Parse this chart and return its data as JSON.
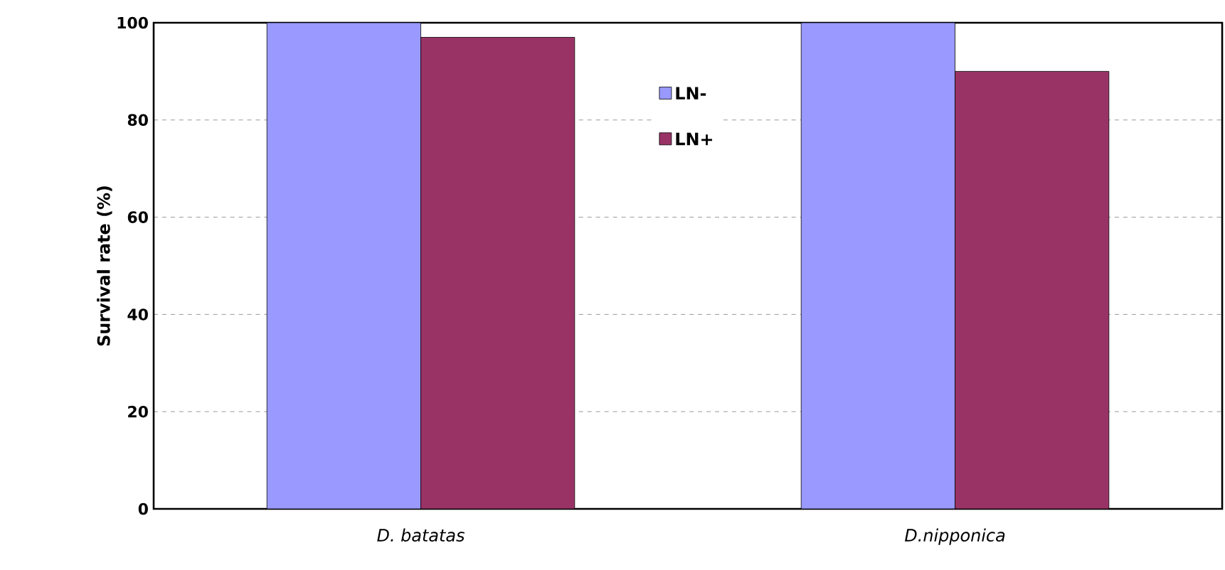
{
  "chart_data": {
    "type": "bar",
    "ylabel": "Survival rate (%)",
    "categories": [
      "*D. batatas*",
      "*D.nipponica*"
    ],
    "series": [
      {
        "name": "LN-",
        "color": "#9999ff",
        "values": [
          100,
          100
        ]
      },
      {
        "name": "LN+",
        "color": "#993366",
        "values": [
          97,
          90
        ]
      }
    ],
    "ylim": [
      0,
      100
    ],
    "yticks": [
      0,
      20,
      40,
      60,
      80,
      100
    ],
    "grid": "y",
    "legend": "top"
  }
}
